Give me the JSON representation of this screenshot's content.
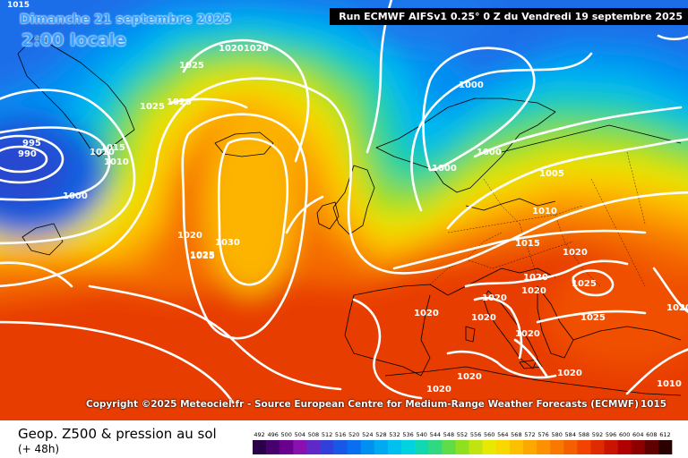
{
  "header": {
    "date_title": "Dimanche 21 septembre 2025",
    "time_title": "2:00 locale",
    "run_info": "Run ECMWF AIFSv1 0.25° 0 Z du Vendredi 19 septembre 2025",
    "corner_value": "1015"
  },
  "footer": {
    "copyright": "Copyright ©2025 Meteociel.fr - Source European Centre for Medium-Range Weather Forecasts (ECMWF)",
    "copyright_extra": "1015",
    "title": "Geop. Z500 & pression au sol",
    "subtitle": "(+ 48h)"
  },
  "legend": {
    "values": [
      "492",
      "496",
      "500",
      "504",
      "508",
      "512",
      "516",
      "520",
      "524",
      "528",
      "532",
      "536",
      "540",
      "544",
      "548",
      "552",
      "556",
      "560",
      "564",
      "568",
      "572",
      "576",
      "580",
      "584",
      "588",
      "592",
      "596",
      "600",
      "604",
      "608",
      "612"
    ],
    "colors": [
      "#2a0048",
      "#48006e",
      "#6a0090",
      "#8a10b0",
      "#6028c8",
      "#3040d8",
      "#1858e8",
      "#0870f0",
      "#0090f0",
      "#00aaf2",
      "#00c0f0",
      "#00d2e0",
      "#10d8b0",
      "#30d880",
      "#60dc48",
      "#90e020",
      "#c0e410",
      "#e8e800",
      "#f8d800",
      "#fcc000",
      "#fca800",
      "#fc9000",
      "#f87800",
      "#f46000",
      "#f04400",
      "#e02a00",
      "#c81400",
      "#b00000",
      "#8c0000",
      "#600000",
      "#2a0000"
    ]
  },
  "isobars": [
    {
      "text": "995",
      "color": "#ffffff"
    },
    {
      "text": "990",
      "color": "#ffffff"
    },
    {
      "text": "1000",
      "color": "#ffffff"
    },
    {
      "text": "1015",
      "color": "#ffffff"
    },
    {
      "text": "1010",
      "color": "#ffffff"
    },
    {
      "text": "1010",
      "color": "#ffffff"
    },
    {
      "text": "1020",
      "color": "#ffffff"
    },
    {
      "text": "1025",
      "color": "#ffffff"
    },
    {
      "text": "1025",
      "color": "#ffffff"
    },
    {
      "text": "10201020",
      "color": "#ffffff"
    },
    {
      "text": "1025",
      "color": "#ffffff"
    },
    {
      "text": "1020",
      "color": "#ffffff"
    },
    {
      "text": "1030",
      "color": "#ffffff"
    },
    {
      "text": "1025",
      "color": "#ffffff"
    },
    {
      "text": "1000",
      "color": "#ffffff"
    },
    {
      "text": "1000",
      "color": "#ffffff"
    },
    {
      "text": "1000",
      "color": "#ffffff"
    },
    {
      "text": "1005",
      "color": "#ffffff"
    },
    {
      "text": "1010",
      "color": "#ffffff"
    },
    {
      "text": "1015",
      "color": "#ffffff"
    },
    {
      "text": "1020",
      "color": "#ffffff"
    },
    {
      "text": "1020",
      "color": "#ffffff"
    },
    {
      "text": "1020",
      "color": "#ffffff"
    },
    {
      "text": "1025",
      "color": "#ffffff"
    },
    {
      "text": "1025",
      "color": "#ffffff"
    },
    {
      "text": "1020",
      "color": "#ffffff"
    },
    {
      "text": "1020",
      "color": "#ffffff"
    },
    {
      "text": "1020",
      "color": "#ffffff"
    },
    {
      "text": "1020",
      "color": "#ffffff"
    },
    {
      "text": "1020",
      "color": "#ffffff"
    },
    {
      "text": "1020",
      "color": "#ffffff"
    },
    {
      "text": "1020",
      "color": "#ffffff"
    },
    {
      "text": "1010",
      "color": "#ffffff"
    },
    {
      "text": "1020",
      "color": "#ffffff"
    }
  ]
}
